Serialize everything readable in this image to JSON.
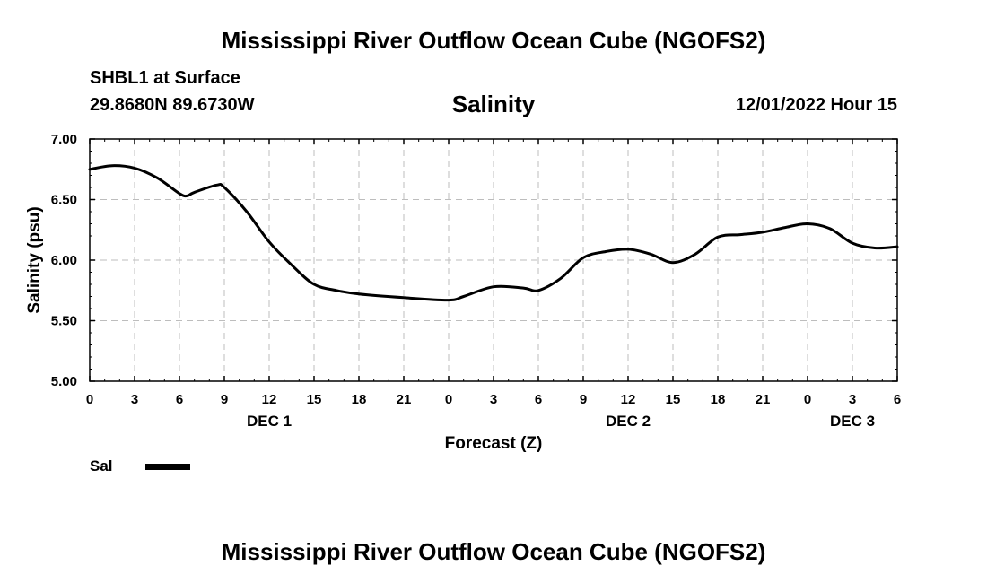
{
  "header": {
    "main_title": "Mississippi River Outflow Ocean Cube (NGOFS2)",
    "station": "SHBL1 at Surface",
    "coords": "29.8680N  89.6730W",
    "datetime": "12/01/2022 Hour 15"
  },
  "footer": {
    "title": "Mississippi River Outflow Ocean Cube (NGOFS2)"
  },
  "chart_data": {
    "type": "line",
    "title": "Salinity",
    "xlabel": "Forecast (Z)",
    "ylabel": "Salinity (psu)",
    "xlim": [
      0,
      54
    ],
    "ylim": [
      5.0,
      7.0
    ],
    "y_ticks": [
      "5.00",
      "5.50",
      "6.00",
      "6.50",
      "7.00"
    ],
    "y_tick_values": [
      5.0,
      5.5,
      6.0,
      6.5,
      7.0
    ],
    "x_tick_labels": [
      "0",
      "3",
      "6",
      "9",
      "12",
      "15",
      "18",
      "21",
      "0",
      "3",
      "6",
      "9",
      "12",
      "15",
      "18",
      "21",
      "0",
      "3",
      "6"
    ],
    "date_labels": [
      {
        "label": "DEC 1",
        "x": 12
      },
      {
        "label": "DEC 2",
        "x": 36
      },
      {
        "label": "DEC 3",
        "x": 51
      }
    ],
    "grid": true,
    "legend": "bottom-left",
    "series": [
      {
        "name": "Sal",
        "color": "#000000",
        "x": [
          0,
          1.5,
          3,
          4.5,
          6,
          6.5,
          7,
          8.5,
          9,
          10.5,
          12,
          13.5,
          15,
          16.5,
          18,
          21,
          24,
          25,
          27,
          29,
          30,
          31.5,
          33,
          34.5,
          36,
          37.5,
          39,
          40.5,
          42,
          43.5,
          45,
          46.5,
          48,
          49.5,
          51,
          52.5,
          54
        ],
        "values": [
          6.75,
          6.78,
          6.76,
          6.68,
          6.55,
          6.53,
          6.56,
          6.62,
          6.6,
          6.4,
          6.15,
          5.96,
          5.8,
          5.75,
          5.72,
          5.69,
          5.67,
          5.7,
          5.78,
          5.77,
          5.75,
          5.85,
          6.02,
          6.07,
          6.09,
          6.05,
          5.98,
          6.05,
          6.19,
          6.21,
          6.23,
          6.27,
          6.3,
          6.26,
          6.14,
          6.1,
          6.11
        ]
      }
    ]
  }
}
